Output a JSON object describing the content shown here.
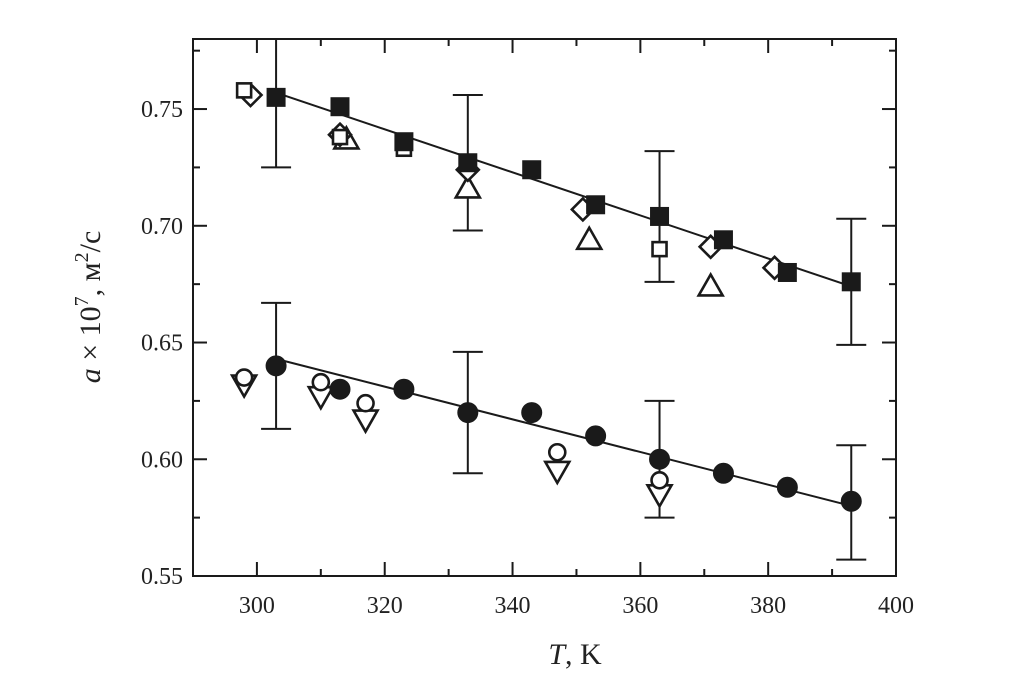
{
  "chart_data": {
    "type": "scatter",
    "title": "",
    "xlabel": {
      "var": "T",
      "unit": ", K"
    },
    "ylabel": {
      "var": "a",
      "mid": " × 10",
      "exp": "7",
      "unit_pre": ",  м",
      "unit_exp": "2",
      "unit_post": "/с"
    },
    "xlim": [
      290,
      400
    ],
    "ylim": [
      0.55,
      0.78
    ],
    "x_ticks": [
      300,
      320,
      340,
      360,
      380,
      400
    ],
    "y_ticks": [
      0.55,
      0.6,
      0.65,
      0.7,
      0.75
    ],
    "y_tick_labels": [
      "0.55",
      "0.60",
      "0.65",
      "0.70",
      "0.75"
    ],
    "grid": false,
    "legend": "none",
    "colors": {
      "ink": "#1a1a1a"
    },
    "series": [
      {
        "marker": "square-filled",
        "points": [
          [
            303,
            0.755
          ],
          [
            313,
            0.751
          ],
          [
            323,
            0.736
          ],
          [
            333,
            0.727
          ],
          [
            343,
            0.724
          ],
          [
            353,
            0.709
          ],
          [
            363,
            0.704
          ],
          [
            373,
            0.694
          ],
          [
            383,
            0.68
          ],
          [
            393,
            0.676
          ]
        ]
      },
      {
        "marker": "square-open",
        "points": [
          [
            298,
            0.758
          ],
          [
            313,
            0.738
          ],
          [
            323,
            0.733
          ],
          [
            363,
            0.69
          ]
        ]
      },
      {
        "marker": "diamond-open",
        "points": [
          [
            299,
            0.756
          ],
          [
            313,
            0.739
          ],
          [
            333,
            0.724
          ],
          [
            351,
            0.707
          ],
          [
            371,
            0.691
          ],
          [
            381,
            0.682
          ]
        ]
      },
      {
        "marker": "triangle-up-open",
        "points": [
          [
            314,
            0.737
          ],
          [
            333,
            0.716
          ],
          [
            352,
            0.694
          ],
          [
            371,
            0.674
          ]
        ]
      },
      {
        "marker": "circle-filled",
        "points": [
          [
            303,
            0.64
          ],
          [
            313,
            0.63
          ],
          [
            323,
            0.63
          ],
          [
            333,
            0.62
          ],
          [
            343,
            0.62
          ],
          [
            353,
            0.61
          ],
          [
            363,
            0.6
          ],
          [
            373,
            0.594
          ],
          [
            383,
            0.588
          ],
          [
            393,
            0.582
          ]
        ]
      },
      {
        "marker": "circle-open",
        "points": [
          [
            298,
            0.635
          ],
          [
            310,
            0.633
          ],
          [
            317,
            0.624
          ],
          [
            347,
            0.603
          ],
          [
            363,
            0.591
          ]
        ]
      },
      {
        "marker": "triangle-down-open",
        "points": [
          [
            298,
            0.632
          ],
          [
            310,
            0.627
          ],
          [
            317,
            0.617
          ],
          [
            347,
            0.595
          ],
          [
            363,
            0.585
          ]
        ]
      }
    ],
    "fit_lines": [
      {
        "from": [
          303,
          0.757
        ],
        "to": [
          393,
          0.674
        ]
      },
      {
        "from": [
          303,
          0.643
        ],
        "to": [
          393,
          0.58
        ]
      }
    ],
    "error_bars": [
      {
        "x": 303,
        "low": 0.725,
        "high": 0.785
      },
      {
        "x": 333,
        "low": 0.698,
        "high": 0.756
      },
      {
        "x": 363,
        "low": 0.676,
        "high": 0.732
      },
      {
        "x": 393,
        "low": 0.649,
        "high": 0.703
      },
      {
        "x": 303,
        "low": 0.613,
        "high": 0.667
      },
      {
        "x": 333,
        "low": 0.594,
        "high": 0.646
      },
      {
        "x": 363,
        "low": 0.575,
        "high": 0.625
      },
      {
        "x": 393,
        "low": 0.557,
        "high": 0.606
      }
    ]
  }
}
